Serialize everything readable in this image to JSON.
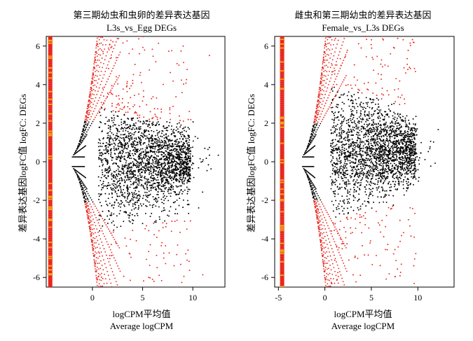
{
  "chart_data": [
    {
      "type": "scatter",
      "title": "第三期幼虫和虫卵的差异表达基因",
      "subtitle": "L3s_vs_Egg DEGs",
      "xlabel": "logCPM平均值",
      "xlabel2": "Average logCPM",
      "ylabel": "差异表达基因logFC值 logFC: DEGs",
      "xlim": [
        -4.6,
        13.2
      ],
      "ylim": [
        -6.5,
        6.5
      ],
      "xticks": [
        0,
        5,
        10
      ],
      "yticks": [
        -6,
        -4,
        -2,
        0,
        2,
        4,
        6
      ],
      "band_x": -4.2,
      "de_threshold": 2.1,
      "boundary": {
        "upper_center": 1.0,
        "upper_half": 1.5,
        "lower_center": -1.0,
        "lower_half": 2.5
      },
      "colors": {
        "de": "#e8251c",
        "nonde": "#000000",
        "tick": "#f0a020"
      }
    },
    {
      "type": "scatter",
      "title": "雌虫和第三期幼虫的差异表达基因",
      "subtitle": "Female_vs_L3s DEGs",
      "xlabel": "logCPM平均值",
      "xlabel2": "Average logCPM",
      "ylabel": "差异表达基因logFC值 logFC: DEGs",
      "xlim": [
        -5.4,
        13.9
      ],
      "ylim": [
        -6.5,
        6.5
      ],
      "xticks": [
        -5,
        0,
        5,
        10
      ],
      "yticks": [
        -6,
        -4,
        -2,
        0,
        2,
        4,
        6
      ],
      "band_x": -4.6,
      "de_threshold": 2.0,
      "boundary": {
        "upper_center": 2.7,
        "upper_half": 1.0,
        "lower_center": -0.6,
        "lower_half": 2.1
      },
      "colors": {
        "de": "#e8251c",
        "nonde": "#000000",
        "tick": "#f0a020"
      }
    }
  ]
}
